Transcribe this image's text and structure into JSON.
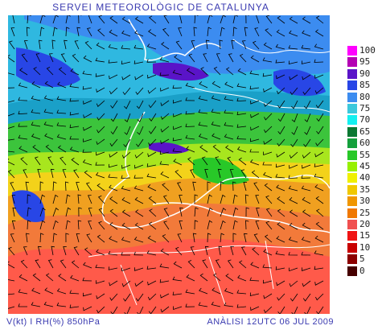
{
  "header": {
    "title": "SERVEI METEOROLÒGIC DE CATALUNYA"
  },
  "footer": {
    "left": "V(kt) I RH(%) 850hPa",
    "right": "ANÀLISI 12UTC 06 JUL 2009"
  },
  "legend": {
    "items": [
      {
        "label": "100",
        "color": "#ff00ff"
      },
      {
        "label": "95",
        "color": "#b400b4"
      },
      {
        "label": "90",
        "color": "#5a14c8"
      },
      {
        "label": "85",
        "color": "#2846e6"
      },
      {
        "label": "80",
        "color": "#3c8cf0"
      },
      {
        "label": "75",
        "color": "#3cc8dc"
      },
      {
        "label": "70",
        "color": "#14f0f0"
      },
      {
        "label": "65",
        "color": "#0a7832"
      },
      {
        "label": "60",
        "color": "#14a03c"
      },
      {
        "label": "55",
        "color": "#28c828"
      },
      {
        "label": "45",
        "color": "#96f000"
      },
      {
        "label": "40",
        "color": "#f0f000"
      },
      {
        "label": "35",
        "color": "#f0c800"
      },
      {
        "label": "30",
        "color": "#f09600"
      },
      {
        "label": "25",
        "color": "#f07800"
      },
      {
        "label": "20",
        "color": "#f05050"
      },
      {
        "label": "15",
        "color": "#f01414"
      },
      {
        "label": "10",
        "color": "#c80000"
      },
      {
        "label": "5",
        "color": "#8c0000"
      },
      {
        "label": "0",
        "color": "#460000"
      }
    ]
  }
}
